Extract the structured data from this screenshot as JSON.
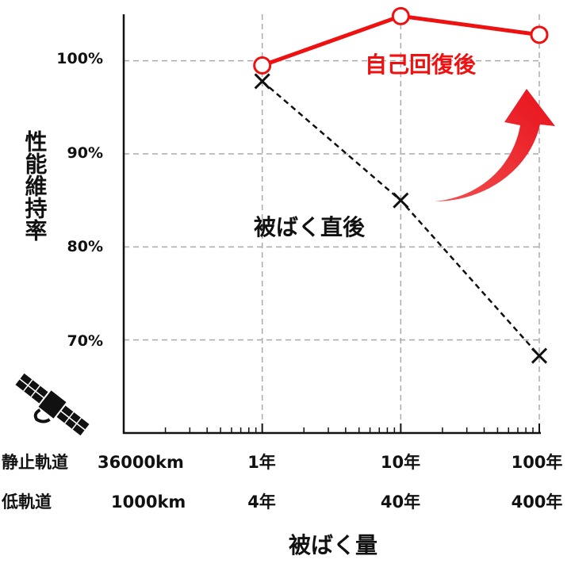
{
  "chart_data": {
    "type": "line",
    "xscale": "log",
    "x": [
      1,
      10,
      100
    ],
    "xlim": [
      0.1,
      100
    ],
    "ylim": [
      60,
      105
    ],
    "grid": true,
    "yticks": [
      {
        "value": 70,
        "label": "70%"
      },
      {
        "value": 80,
        "label": "80%"
      },
      {
        "value": 90,
        "label": "90%"
      },
      {
        "value": 100,
        "label": "100%"
      }
    ],
    "ylabel": "性能維持率",
    "xlabel": "被ばく量",
    "x_label_rows": [
      {
        "name": "静止軌道",
        "unit_value": "36000km",
        "labels": [
          "1年",
          "10年",
          "100年"
        ]
      },
      {
        "name": "低軌道",
        "unit_value": "1000km",
        "labels": [
          "4年",
          "40年",
          "400年"
        ]
      }
    ],
    "series": [
      {
        "name": "自己回復後",
        "values": [
          99.5,
          104.8,
          102.8
        ],
        "color": "#ee1111",
        "marker": "circle",
        "line": "solid"
      },
      {
        "name": "被ばく直後",
        "values": [
          97.8,
          85,
          68.3
        ],
        "color": "#111111",
        "marker": "x",
        "line": "dashed"
      }
    ],
    "annotation": {
      "type": "curved-arrow",
      "color": "#ee1111",
      "icon": "satellite-icon"
    }
  }
}
